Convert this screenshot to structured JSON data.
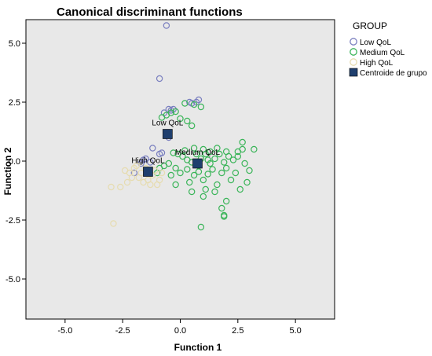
{
  "colors": {
    "plot_background": "#e8e8e8",
    "low": "#7a7fbf",
    "medium": "#3cb55a",
    "high": "#e6dcb0",
    "centroid": "#1f3f6e"
  },
  "chart_data": {
    "type": "scatter",
    "title": "Canonical discriminant functions",
    "xlabel": "Function 1",
    "ylabel": "Function 2",
    "xlim": [
      -6.7,
      6.7
    ],
    "ylim": [
      -6.7,
      6.0
    ],
    "xticks": [
      -5.0,
      -2.5,
      0.0,
      2.5,
      5.0
    ],
    "yticks": [
      -5.0,
      -2.5,
      0.0,
      2.5,
      5.0
    ],
    "xtick_labels": [
      "-5.0",
      "-2.5",
      "0.0",
      "2.5",
      "5.0"
    ],
    "ytick_labels": [
      "-5.0",
      "-2.5",
      "0.0",
      "2.5",
      "5.0"
    ],
    "grid": false,
    "legend_title": "GROUP",
    "legend_position": "right",
    "series": [
      {
        "name": "Low QoL",
        "marker": "circle",
        "color": "#7a7fbf",
        "points": [
          [
            -0.6,
            5.75
          ],
          [
            -0.9,
            3.5
          ],
          [
            -0.5,
            2.2
          ],
          [
            -0.4,
            2.15
          ],
          [
            -0.3,
            2.2
          ],
          [
            -0.7,
            2.05
          ],
          [
            0.4,
            2.5
          ],
          [
            0.5,
            2.45
          ],
          [
            0.7,
            2.5
          ],
          [
            0.8,
            2.6
          ],
          [
            -1.2,
            0.55
          ],
          [
            -0.9,
            0.3
          ],
          [
            -0.8,
            0.35
          ],
          [
            -1.5,
            0.1
          ],
          [
            -1.6,
            0.05
          ],
          [
            -1.7,
            -0.1
          ],
          [
            -1.3,
            -0.05
          ],
          [
            -0.6,
            1.2
          ],
          [
            -0.5,
            1.0
          ],
          [
            -2.0,
            -0.5
          ]
        ]
      },
      {
        "name": "Medium QoL",
        "marker": "circle",
        "color": "#3cb55a",
        "points": [
          [
            -0.8,
            1.85
          ],
          [
            -0.6,
            1.95
          ],
          [
            -0.4,
            2.05
          ],
          [
            -0.2,
            2.1
          ],
          [
            0.0,
            1.8
          ],
          [
            0.3,
            1.7
          ],
          [
            0.5,
            1.5
          ],
          [
            0.6,
            2.4
          ],
          [
            0.9,
            2.3
          ],
          [
            0.2,
            2.45
          ],
          [
            -0.3,
            0.35
          ],
          [
            -0.1,
            0.3
          ],
          [
            0.1,
            0.2
          ],
          [
            0.3,
            0.05
          ],
          [
            0.5,
            -0.05
          ],
          [
            0.7,
            0.3
          ],
          [
            0.9,
            0.1
          ],
          [
            1.1,
            0.3
          ],
          [
            1.3,
            -0.1
          ],
          [
            1.5,
            0.1
          ],
          [
            1.7,
            0.3
          ],
          [
            1.9,
            -0.05
          ],
          [
            2.1,
            0.2
          ],
          [
            2.3,
            0.05
          ],
          [
            2.5,
            0.4
          ],
          [
            2.7,
            0.8
          ],
          [
            2.7,
            0.5
          ],
          [
            3.2,
            0.5
          ],
          [
            2.5,
            0.2
          ],
          [
            2.0,
            0.4
          ],
          [
            1.6,
            0.55
          ],
          [
            1.3,
            0.4
          ],
          [
            1.0,
            0.5
          ],
          [
            0.6,
            0.55
          ],
          [
            0.2,
            0.45
          ],
          [
            -0.5,
            -0.1
          ],
          [
            -0.2,
            -0.3
          ],
          [
            0.0,
            -0.5
          ],
          [
            0.3,
            -0.35
          ],
          [
            0.6,
            -0.6
          ],
          [
            0.8,
            -0.45
          ],
          [
            1.0,
            -0.8
          ],
          [
            1.2,
            -0.55
          ],
          [
            1.4,
            -0.35
          ],
          [
            1.6,
            -1.0
          ],
          [
            1.8,
            -0.5
          ],
          [
            2.0,
            -0.3
          ],
          [
            2.2,
            -0.8
          ],
          [
            2.4,
            -0.5
          ],
          [
            2.6,
            -1.2
          ],
          [
            2.9,
            -0.9
          ],
          [
            3.0,
            -0.4
          ],
          [
            1.0,
            -1.5
          ],
          [
            1.5,
            -1.3
          ],
          [
            2.0,
            -1.7
          ],
          [
            0.5,
            -1.3
          ],
          [
            -0.2,
            -1.0
          ],
          [
            1.1,
            -1.2
          ],
          [
            1.8,
            -2.0
          ],
          [
            1.9,
            -2.3
          ],
          [
            0.9,
            -2.8
          ],
          [
            1.9,
            -2.35
          ],
          [
            -0.7,
            -0.2
          ],
          [
            -0.9,
            -0.3
          ],
          [
            -1.0,
            -0.5
          ],
          [
            -0.4,
            -0.6
          ],
          [
            0.4,
            -0.9
          ],
          [
            2.8,
            -0.1
          ],
          [
            1.2,
            0.05
          ],
          [
            0.8,
            -0.2
          ]
        ]
      },
      {
        "name": "High QoL",
        "marker": "circle",
        "color": "#e6dcb0",
        "points": [
          [
            -3.0,
            -1.1
          ],
          [
            -2.6,
            -1.1
          ],
          [
            -2.9,
            -2.65
          ],
          [
            -2.2,
            -0.5
          ],
          [
            -2.0,
            -0.3
          ],
          [
            -1.8,
            -0.7
          ],
          [
            -1.6,
            -0.9
          ],
          [
            -1.4,
            -0.8
          ],
          [
            -1.2,
            -0.6
          ],
          [
            -1.0,
            -1.0
          ],
          [
            -2.4,
            -0.4
          ],
          [
            -1.9,
            -0.2
          ],
          [
            -1.5,
            -0.3
          ],
          [
            -1.1,
            -0.4
          ],
          [
            -0.9,
            -0.8
          ],
          [
            -1.3,
            -1.0
          ],
          [
            -2.1,
            -0.7
          ],
          [
            -1.7,
            -0.5
          ],
          [
            -0.8,
            -0.5
          ],
          [
            -2.3,
            -0.9
          ]
        ]
      },
      {
        "name": "Centroide de grupo",
        "marker": "square",
        "color": "#1f3f6e",
        "points": [
          [
            -0.55,
            1.15
          ],
          [
            0.75,
            -0.1
          ],
          [
            -1.4,
            -0.45
          ]
        ]
      }
    ],
    "annotations": [
      {
        "text": "Low QoL",
        "x": -0.55,
        "y": 1.15
      },
      {
        "text": "Medium QoL",
        "x": 0.75,
        "y": -0.1
      },
      {
        "text": "High QoL",
        "x": -1.4,
        "y": -0.45
      }
    ]
  }
}
